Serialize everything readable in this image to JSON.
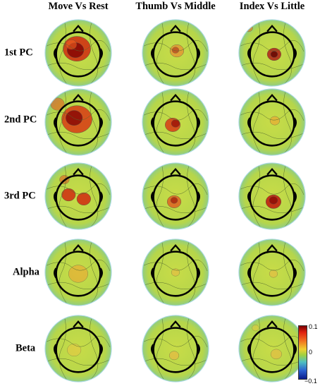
{
  "columns": [
    {
      "label": "Move Vs Rest"
    },
    {
      "label": "Thumb Vs Middle"
    },
    {
      "label": "Index Vs Little"
    }
  ],
  "rows": [
    {
      "label": "1st PC"
    },
    {
      "label": "2nd PC"
    },
    {
      "label": "3rd PC"
    },
    {
      "label": "Alpha"
    },
    {
      "label": "Beta"
    }
  ],
  "colorbar": {
    "max_label": "0.1",
    "mid_label": "0",
    "min_label": "−0.1",
    "colors": [
      "#7a0000",
      "#e02010",
      "#f07020",
      "#f0d030",
      "#9fd040",
      "#4fc0c0",
      "#2a60d0",
      "#0a1a8a"
    ]
  },
  "colors": {
    "background_field": "#bcd94a",
    "head_outline": "#000000"
  }
}
